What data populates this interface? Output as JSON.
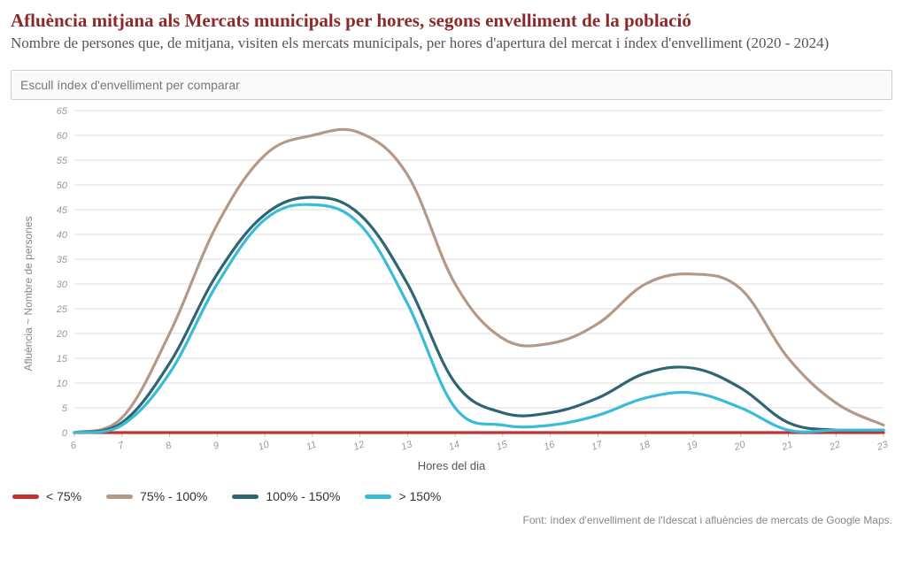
{
  "title": "Afluència mitjana als Mercats municipals per hores, segons envelliment de la població",
  "subtitle": "Nombre de persones que, de mitjana, visiten els mercats municipals, per hores d'apertura del mercat i índex d'envelliment (2020 - 2024)",
  "select_placeholder": "Escull índex d'envelliment per comparar",
  "ylabel": "Afluència ~ Nombre de persones",
  "xlabel": "Hores del dia",
  "source": "Font: índex d'envelliment de l'Idescat i afluències de mercats de Google Maps.",
  "chart": {
    "type": "line",
    "x": [
      6,
      7,
      8,
      9,
      10,
      11,
      12,
      13,
      14,
      15,
      16,
      17,
      18,
      19,
      20,
      21,
      22,
      23
    ],
    "xlim": [
      6,
      23
    ],
    "ylim": [
      0,
      65
    ],
    "ytick_step": 5,
    "xtick_step": 1,
    "grid_color": "#dcdcdc",
    "background": "#ffffff",
    "axis_text_color": "#9a9a9a",
    "line_width": 3.2,
    "series": [
      {
        "key": "lt75",
        "label": "< 75%",
        "color": "#c33130",
        "values": [
          0,
          0,
          0,
          0,
          0,
          0,
          0,
          0,
          0,
          0,
          0,
          0,
          0,
          0,
          0,
          0,
          0,
          0
        ]
      },
      {
        "key": "75_100",
        "label": "75% - 100%",
        "color": "#b39a88",
        "values": [
          0,
          3,
          20,
          42,
          56,
          60,
          60.5,
          52,
          30,
          19,
          18,
          22,
          30,
          32,
          29,
          15,
          6,
          1.5
        ]
      },
      {
        "key": "100_150",
        "label": "100% - 150%",
        "color": "#2f6573",
        "values": [
          0,
          2,
          14,
          32,
          44,
          47.5,
          44,
          30,
          10,
          4,
          4,
          7,
          12,
          13,
          9,
          2,
          0.5,
          0.5
        ]
      },
      {
        "key": "gt150",
        "label": "> 150%",
        "color": "#39bcd6",
        "values": [
          0,
          1.5,
          12,
          30,
          43,
          46,
          42,
          26,
          5,
          1.5,
          1.5,
          3.5,
          7,
          8,
          5,
          0.5,
          0.5,
          0.5
        ]
      }
    ]
  }
}
